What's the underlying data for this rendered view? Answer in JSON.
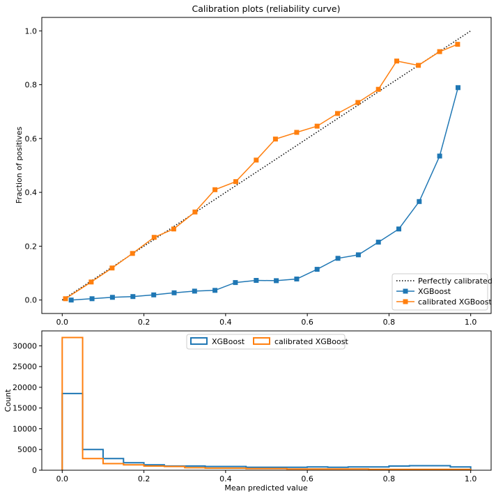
{
  "chart_data": [
    {
      "type": "line",
      "title": "Calibration plots  (reliability curve)",
      "xlabel": "",
      "ylabel": "Fraction of positives",
      "xlim": [
        -0.05,
        1.05
      ],
      "ylim": [
        -0.05,
        1.05
      ],
      "xticks": [
        "0.0",
        "0.2",
        "0.4",
        "0.6",
        "0.8",
        "1.0"
      ],
      "yticks": [
        "0.0",
        "0.2",
        "0.4",
        "0.6",
        "0.8",
        "1.0"
      ],
      "legend": "lower-right",
      "grid": false,
      "series": [
        {
          "name": "Perfectly calibrated",
          "style": "dotted",
          "color": "#000000",
          "x": [
            0,
            1
          ],
          "y": [
            0,
            1
          ]
        },
        {
          "name": "XGBoost",
          "marker": "square",
          "color": "#1f77b4",
          "x": [
            0.022,
            0.073,
            0.123,
            0.173,
            0.224,
            0.274,
            0.324,
            0.374,
            0.424,
            0.475,
            0.524,
            0.574,
            0.624,
            0.675,
            0.725,
            0.774,
            0.824,
            0.874,
            0.924,
            0.969
          ],
          "y": [
            0.0,
            0.005,
            0.01,
            0.013,
            0.019,
            0.027,
            0.033,
            0.036,
            0.065,
            0.073,
            0.072,
            0.078,
            0.114,
            0.155,
            0.168,
            0.215,
            0.264,
            0.366,
            0.535,
            0.789
          ]
        },
        {
          "name": "calibrated XGBoost",
          "marker": "square",
          "color": "#ff7f0e",
          "x": [
            0.008,
            0.071,
            0.122,
            0.172,
            0.225,
            0.273,
            0.325,
            0.374,
            0.425,
            0.475,
            0.522,
            0.574,
            0.624,
            0.674,
            0.724,
            0.774,
            0.819,
            0.872,
            0.924,
            0.968
          ],
          "y": [
            0.005,
            0.067,
            0.119,
            0.173,
            0.233,
            0.264,
            0.327,
            0.41,
            0.44,
            0.52,
            0.598,
            0.623,
            0.646,
            0.693,
            0.734,
            0.783,
            0.888,
            0.872,
            0.923,
            0.95
          ]
        }
      ]
    },
    {
      "type": "histogram",
      "title": "",
      "xlabel": "Mean predicted value",
      "ylabel": "Count",
      "xlim": [
        -0.05,
        1.05
      ],
      "ylim": [
        0,
        33600
      ],
      "xticks": [
        "0.0",
        "0.2",
        "0.4",
        "0.6",
        "0.8",
        "1.0"
      ],
      "yticks": [
        "0",
        "5000",
        "10000",
        "15000",
        "20000",
        "25000",
        "30000"
      ],
      "legend": "top-center",
      "bin_edges": [
        0.0,
        0.05,
        0.1,
        0.15,
        0.2,
        0.25,
        0.3,
        0.35,
        0.4,
        0.45,
        0.5,
        0.55,
        0.6,
        0.65,
        0.7,
        0.75,
        0.8,
        0.85,
        0.9,
        0.95,
        1.0
      ],
      "series": [
        {
          "name": "XGBoost",
          "color": "#1f77b4",
          "counts": [
            18500,
            5000,
            2800,
            1800,
            1300,
            1000,
            1000,
            900,
            900,
            700,
            700,
            700,
            800,
            700,
            800,
            800,
            1000,
            1100,
            1100,
            800
          ]
        },
        {
          "name": "calibrated XGBoost",
          "color": "#ff7f0e",
          "counts": [
            32000,
            2800,
            1600,
            1300,
            1000,
            900,
            600,
            500,
            500,
            400,
            400,
            300,
            300,
            300,
            300,
            200,
            200,
            200,
            200,
            200
          ]
        }
      ]
    }
  ]
}
